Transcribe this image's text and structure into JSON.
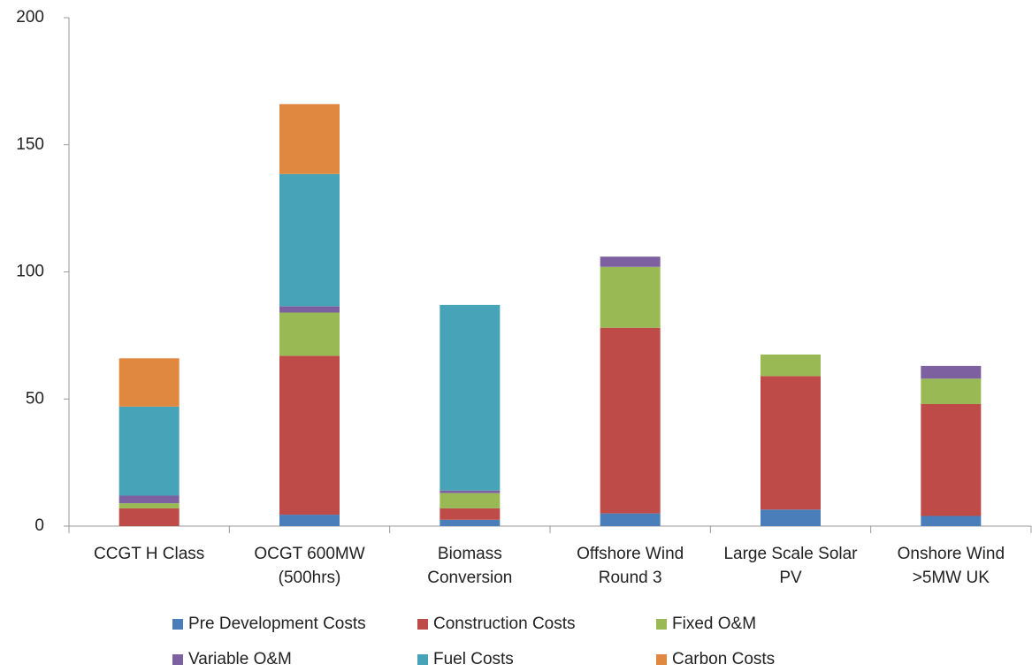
{
  "chart_data": {
    "type": "stacked_bar",
    "categories": [
      "CCGT H Class",
      "OCGT 600MW (500hrs)",
      "Biomass Conversion",
      "Offshore Wind Round 3",
      "Large Scale Solar PV",
      "Onshore Wind >5MW UK"
    ],
    "series": [
      {
        "name": "Pre Development Costs",
        "color": "#4a7ebb",
        "values": [
          0,
          4.5,
          2.5,
          5,
          6.5,
          4
        ]
      },
      {
        "name": "Construction Costs",
        "color": "#be4b48",
        "values": [
          7,
          62.5,
          4.5,
          73,
          52.5,
          44
        ]
      },
      {
        "name": "Fixed O&M",
        "color": "#98b954",
        "values": [
          2,
          17,
          6,
          24,
          8.5,
          10
        ]
      },
      {
        "name": "Variable O&M",
        "color": "#7d60a0",
        "values": [
          3,
          2.5,
          1,
          4,
          0,
          5
        ]
      },
      {
        "name": "Fuel Costs",
        "color": "#46a3b8",
        "values": [
          35,
          52,
          73,
          0,
          0,
          0
        ]
      },
      {
        "name": "Carbon Costs",
        "color": "#e0883f",
        "values": [
          19,
          27.5,
          0,
          0,
          0,
          0
        ]
      }
    ],
    "ylim": [
      0,
      200
    ],
    "yticks": [
      0,
      50,
      100,
      150,
      200
    ],
    "grid": false,
    "legend": "bottom"
  }
}
